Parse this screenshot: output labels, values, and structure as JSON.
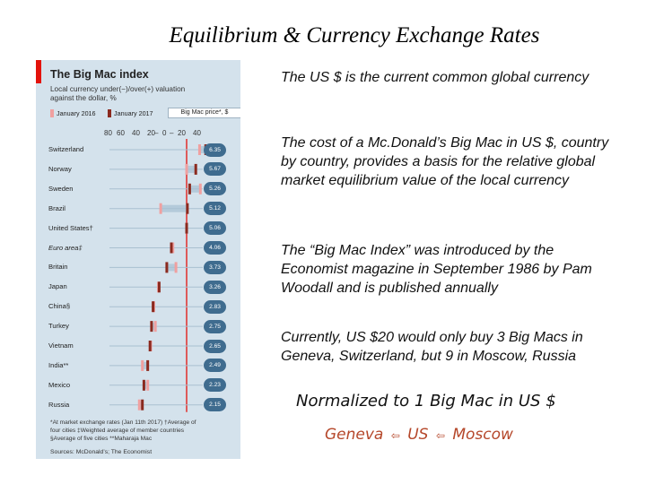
{
  "slide": {
    "title": "Equilibrium & Currency Exchange Rates"
  },
  "infographic": {
    "title": "The Big Mac index",
    "subtitle_line1": "Local currency under(−)/over(+) valuation",
    "subtitle_line2": "against the dollar, %",
    "legend_2016": "January 2016",
    "legend_2017": "January 2017",
    "price_key": "Big Mac price*, $",
    "axis_ticks": [
      "80",
      "60",
      "40",
      "20",
      "–",
      "0",
      "–",
      "20",
      "40"
    ],
    "colors": {
      "accent_red": "#e3120b",
      "bar_2016": "#f0a0a0",
      "bar_2017": "#8b2a1f",
      "badge": "#3f6c8f",
      "background": "#d4e2ec"
    },
    "countries": [
      {
        "name": "Switzerland",
        "price": "6.35",
        "v2017": 25,
        "v2016": 17
      },
      {
        "name": "Norway",
        "price": "5.67",
        "v2017": 12,
        "v2016": 0
      },
      {
        "name": "Sweden",
        "price": "5.26",
        "v2017": 4,
        "v2016": 18
      },
      {
        "name": "Brazil",
        "price": "5.12",
        "v2017": 1,
        "v2016": -34
      },
      {
        "name": "United States†",
        "price": "5.06",
        "v2017": 0,
        "v2016": 0
      },
      {
        "name": "Euro area‡",
        "price": "4.06",
        "v2017": -20,
        "v2016": -18
      },
      {
        "name": "Britain",
        "price": "3.73",
        "v2017": -26,
        "v2016": -14
      },
      {
        "name": "Japan",
        "price": "3.26",
        "v2017": -36,
        "v2016": -37
      },
      {
        "name": "China§",
        "price": "2.83",
        "v2017": -44,
        "v2016": -43
      },
      {
        "name": "Turkey",
        "price": "2.75",
        "v2017": -46,
        "v2016": -41
      },
      {
        "name": "Vietnam",
        "price": "2.65",
        "v2017": -48,
        "v2016": -47
      },
      {
        "name": "India**",
        "price": "2.49",
        "v2017": -51,
        "v2016": -58
      },
      {
        "name": "Mexico",
        "price": "2.23",
        "v2017": -56,
        "v2016": -51
      },
      {
        "name": "Russia",
        "price": "2.15",
        "v2017": -58,
        "v2016": -62
      }
    ],
    "footnotes": [
      "*At market exchange rates (Jan 11th 2017)   †Average of",
      "four cities    ‡Weighted average of member countries",
      "§Average of five cities    **Maharaja Mac"
    ],
    "sources": "Sources: McDonald’s; The Economist"
  },
  "text": {
    "para1": "The US $ is the current common global currency",
    "para2": "The cost of a Mc.Donald’s Big Mac in   US $, country by country, provides a basis for the relative global market equilibrium value of the local currency",
    "para3": "The “Big Mac Index” was introduced by the Economist magazine in September 1986 by Pam Woodall and is published annually",
    "para4": "Currently, US $20 would only buy 3 Big Macs in Geneva, Switzerland, but 9 in Moscow, Russia",
    "normalized": "Normalized to 1 Big Mac in US $",
    "compare_geneva": "Geneva",
    "compare_us": "US",
    "compare_moscow": "Moscow",
    "separator_icon": "arrow-icon"
  }
}
